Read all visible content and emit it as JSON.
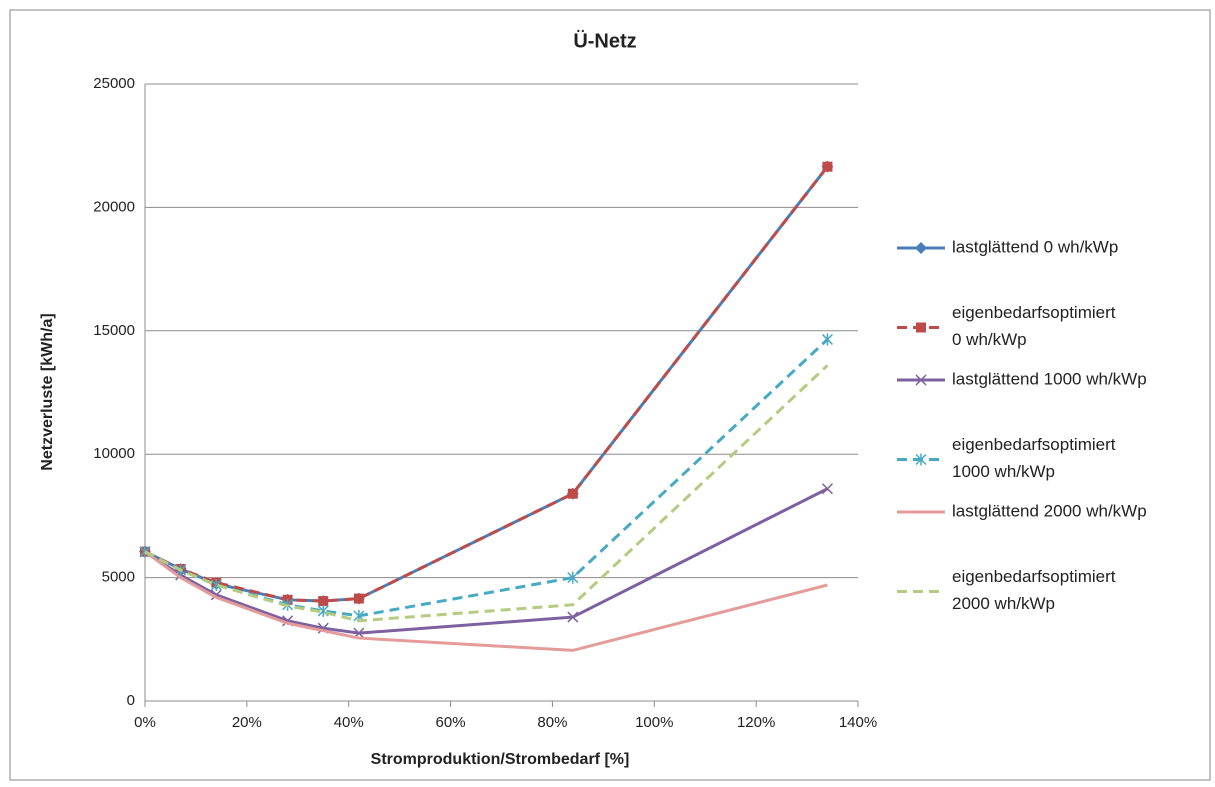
{
  "chart_data": {
    "type": "line",
    "title": "Ü-Netz",
    "x_label": "Stromproduktion/Strombedarf [%]",
    "y_label": "Netzverluste [kWh/a]",
    "x": [
      0,
      7,
      14,
      28,
      35,
      42,
      84,
      134
    ],
    "xlim": [
      0,
      140
    ],
    "xticks": [
      {
        "value": 0,
        "label": "0%"
      },
      {
        "value": 20,
        "label": "20%"
      },
      {
        "value": 40,
        "label": "40%"
      },
      {
        "value": 60,
        "label": "60%"
      },
      {
        "value": 80,
        "label": "80%"
      },
      {
        "value": 100,
        "label": "100%"
      },
      {
        "value": 120,
        "label": "120%"
      },
      {
        "value": 140,
        "label": "140%"
      }
    ],
    "ylim": [
      0,
      25000
    ],
    "yticks": [
      0,
      5000,
      10000,
      15000,
      20000,
      25000
    ],
    "grid": true,
    "legend": "right",
    "series": [
      {
        "name": "lastglättend 0 wh/kWp",
        "color": "#4a7ebb",
        "marker": "diamond",
        "dashed": false,
        "values": [
          6050,
          5350,
          4750,
          4100,
          4050,
          4150,
          8400,
          21650
        ]
      },
      {
        "name": "eigenbedarfsoptimiert 0 wh/kWp",
        "color": "#be4b48",
        "marker": "square",
        "dashed": true,
        "values": [
          6050,
          5350,
          4800,
          4100,
          4050,
          4150,
          8400,
          21650
        ]
      },
      {
        "name": "lastglättend 1000 wh/kWp",
        "color": "#7d60a0",
        "marker": "x",
        "dashed": false,
        "values": [
          6050,
          5100,
          4300,
          3250,
          2950,
          2750,
          3400,
          8600
        ]
      },
      {
        "name": "eigenbedarfsoptimiert 1000 wh/kWp",
        "color": "#46aac5",
        "marker": "star",
        "dashed": true,
        "values": [
          6050,
          5300,
          4700,
          3900,
          3650,
          3450,
          5000,
          14650
        ]
      },
      {
        "name": "lastglättend 2000 wh/kWp",
        "color": "#e39c9a",
        "marker": "none",
        "dashed": false,
        "values": [
          6050,
          5000,
          4200,
          3150,
          2850,
          2550,
          2050,
          4700
        ]
      },
      {
        "name": "eigenbedarfsoptimiert 2000 wh/kWp",
        "color": "#b3cc82",
        "marker": "none",
        "dashed": true,
        "values": [
          6050,
          5300,
          4700,
          3850,
          3600,
          3250,
          3900,
          13600
        ]
      }
    ]
  }
}
